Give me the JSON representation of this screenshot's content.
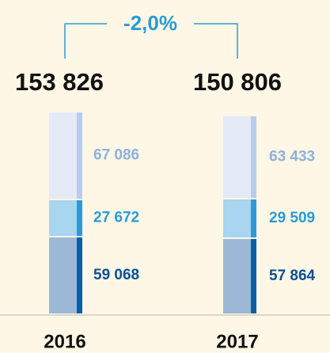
{
  "chart_data": {
    "type": "stacked_bar",
    "annotation": "-2,0%",
    "categories": [
      "2016",
      "2017"
    ],
    "totals": [
      153826,
      150806
    ],
    "total_labels": [
      "153 826",
      "150 806"
    ],
    "series": [
      {
        "color": "#9bb8d6",
        "edge_color": "#0a5ea8",
        "label_color": "#0a4f94",
        "values": [
          59068,
          57864
        ],
        "value_labels": [
          "59 068",
          "57 864"
        ]
      },
      {
        "color": "#a8d5ef",
        "edge_color": "#2a9bd6",
        "label_color": "#2a9bd6",
        "values": [
          27672,
          29509
        ],
        "value_labels": [
          "27 672",
          "29 509"
        ]
      },
      {
        "color": "#e4eaf6",
        "edge_color": "#b9cceb",
        "label_color": "#8fb1dc",
        "values": [
          67086,
          63433
        ],
        "value_labels": [
          "67 086",
          "63 433"
        ]
      }
    ]
  }
}
